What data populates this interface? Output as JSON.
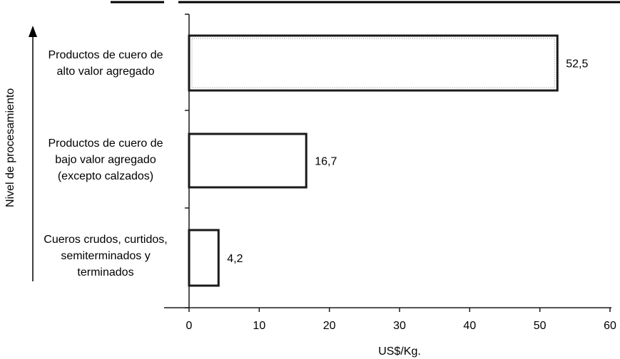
{
  "chart_data": {
    "type": "bar",
    "orientation": "horizontal",
    "categories": [
      "Productos de cuero de\nalto valor agregado",
      "Productos de cuero de\nbajo valor agregado\n(excepto calzados)",
      "Cueros crudos, curtidos,\nsemiterminados y\nterminados"
    ],
    "values": [
      52.5,
      16.7,
      4.2
    ],
    "value_labels": [
      "52,5",
      "16,7",
      "4,2"
    ],
    "xlabel": "US$/Kg.",
    "ylabel": "Nivel de procesamiento",
    "xlim": [
      0,
      60
    ],
    "xticks": [
      "0",
      "10",
      "20",
      "30",
      "40",
      "50",
      "60"
    ],
    "grid": false,
    "legend": "none",
    "colors": {
      "bar_fill": "#ffffff",
      "bar_stroke": "#1a1a1a",
      "axis": "#1a1a1a",
      "top_rule": "#000000"
    }
  }
}
